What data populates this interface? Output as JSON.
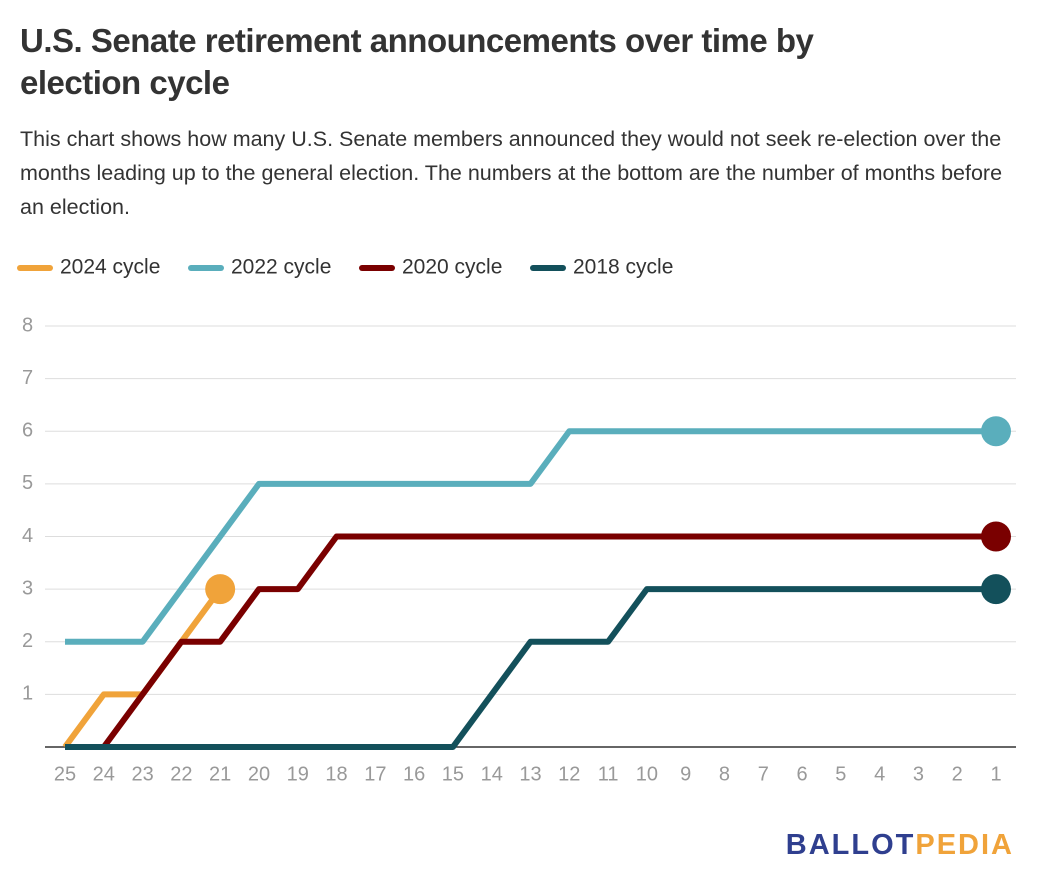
{
  "chart_data": {
    "type": "line",
    "title": "U.S. Senate retirement announcements over time by election cycle",
    "subtitle": "This chart shows how many U.S. Senate members announced they would not seek re-election over the months leading up to the general election. The numbers at the bottom are the number of months before an election.",
    "categories": [
      "25",
      "24",
      "23",
      "22",
      "21",
      "20",
      "19",
      "18",
      "17",
      "16",
      "15",
      "14",
      "13",
      "12",
      "11",
      "10",
      "9",
      "8",
      "7",
      "6",
      "5",
      "4",
      "3",
      "2",
      "1"
    ],
    "series": [
      {
        "name": "2024 cycle",
        "color": "#f0a33a",
        "values": [
          0,
          1,
          1,
          2,
          3,
          null,
          null,
          null,
          null,
          null,
          null,
          null,
          null,
          null,
          null,
          null,
          null,
          null,
          null,
          null,
          null,
          null,
          null,
          null,
          null
        ]
      },
      {
        "name": "2022 cycle",
        "color": "#5aaebc",
        "values": [
          2,
          2,
          2,
          3,
          4,
          5,
          5,
          5,
          5,
          5,
          5,
          5,
          5,
          6,
          6,
          6,
          6,
          6,
          6,
          6,
          6,
          6,
          6,
          6,
          6
        ]
      },
      {
        "name": "2020 cycle",
        "color": "#7a0000",
        "values": [
          0,
          0,
          1,
          2,
          2,
          3,
          3,
          4,
          4,
          4,
          4,
          4,
          4,
          4,
          4,
          4,
          4,
          4,
          4,
          4,
          4,
          4,
          4,
          4,
          4
        ]
      },
      {
        "name": "2018 cycle",
        "color": "#13505b",
        "values": [
          0,
          0,
          0,
          0,
          0,
          0,
          0,
          0,
          0,
          0,
          0,
          1,
          2,
          2,
          2,
          3,
          3,
          3,
          3,
          3,
          3,
          3,
          3,
          3,
          3
        ]
      }
    ],
    "ylim": [
      0,
      8
    ],
    "yticks": [
      1,
      2,
      3,
      4,
      5,
      6,
      7,
      8
    ],
    "grid": true,
    "legend": "top-left",
    "brand": {
      "first": "BALLOT",
      "second": "PEDIA"
    }
  }
}
